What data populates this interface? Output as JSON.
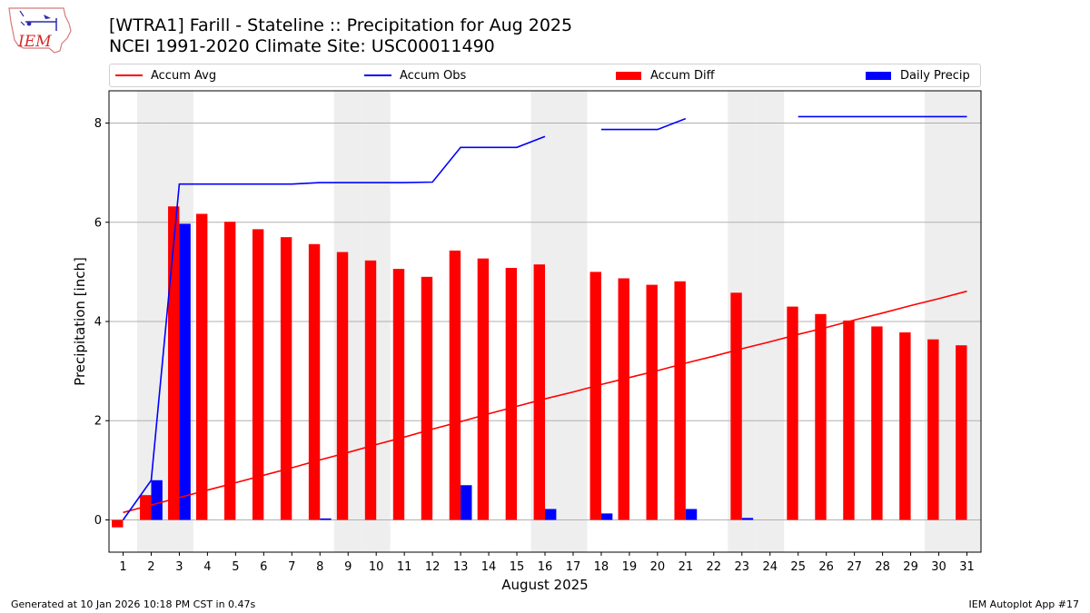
{
  "header": {
    "title_line1": "[WTRA1] Farill - Stateline :: Precipitation for Aug 2025",
    "title_line2": "NCEI 1991-2020 Climate Site: USC00011490"
  },
  "logo": {
    "text": "IEM",
    "color": "#d42a2a"
  },
  "footer": {
    "left": "Generated at 10 Jan 2026 10:18 PM CST in 0.47s",
    "right": "IEM Autoplot App #17"
  },
  "chart_data": {
    "type": "bar",
    "xlabel": "August 2025",
    "ylabel": "Precipitation [inch]",
    "ylim": [
      -0.65,
      8.65
    ],
    "yticks": [
      0,
      2,
      4,
      6,
      8
    ],
    "grid": true,
    "legend_position": "top",
    "x": [
      1,
      2,
      3,
      4,
      5,
      6,
      7,
      8,
      9,
      10,
      11,
      12,
      13,
      14,
      15,
      16,
      17,
      18,
      19,
      20,
      21,
      22,
      23,
      24,
      25,
      26,
      27,
      28,
      29,
      30,
      31
    ],
    "weekend_days": [
      2,
      3,
      9,
      10,
      16,
      17,
      23,
      24,
      30,
      31
    ],
    "series": [
      {
        "name": "Accum Avg",
        "kind": "line",
        "color": "#ff0000",
        "values": [
          0.15,
          0.3,
          0.45,
          0.6,
          0.75,
          0.9,
          1.05,
          1.21,
          1.36,
          1.52,
          1.67,
          1.83,
          1.98,
          2.14,
          2.29,
          2.44,
          2.58,
          2.73,
          2.87,
          3.01,
          3.16,
          3.3,
          3.45,
          3.59,
          3.74,
          3.88,
          4.03,
          4.17,
          4.32,
          4.46,
          4.61
        ]
      },
      {
        "name": "Accum Obs",
        "kind": "line",
        "color": "#0000ff",
        "values": [
          0.0,
          0.8,
          6.77,
          6.77,
          6.77,
          6.77,
          6.77,
          6.8,
          6.8,
          6.8,
          6.8,
          6.81,
          7.51,
          7.51,
          7.51,
          7.73,
          null,
          7.87,
          7.87,
          7.87,
          8.09,
          null,
          null,
          null,
          8.13,
          8.13,
          8.13,
          8.13,
          8.13,
          8.13,
          8.13
        ]
      },
      {
        "name": "Accum Diff",
        "kind": "bar",
        "color": "#ff0000",
        "values": [
          -0.15,
          0.5,
          6.32,
          6.17,
          6.01,
          5.86,
          5.7,
          5.56,
          5.4,
          5.23,
          5.06,
          4.9,
          5.43,
          5.27,
          5.08,
          5.15,
          null,
          5.0,
          4.87,
          4.74,
          4.81,
          null,
          4.58,
          null,
          4.3,
          4.15,
          4.02,
          3.9,
          3.78,
          3.64,
          3.52
        ]
      },
      {
        "name": "Daily Precip",
        "kind": "bar",
        "color": "#0000ff",
        "values": [
          0,
          0.8,
          5.97,
          0,
          0,
          0,
          0,
          0.03,
          0,
          0,
          0,
          0,
          0.7,
          0,
          0,
          0.22,
          null,
          0.13,
          0,
          0,
          0.22,
          null,
          0.04,
          null,
          0,
          0,
          0,
          0,
          0,
          0,
          0
        ]
      }
    ]
  }
}
